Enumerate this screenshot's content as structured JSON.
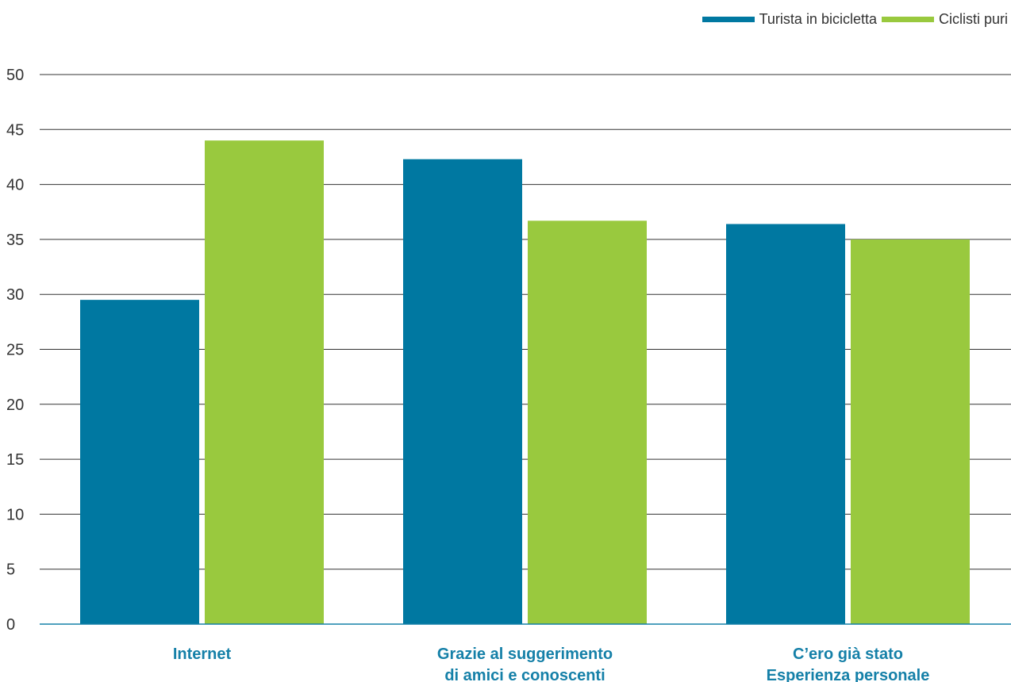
{
  "chart_data": {
    "type": "bar",
    "title": "",
    "xlabel": "",
    "ylabel": "",
    "ylim": [
      0,
      50
    ],
    "yticks": [
      0,
      5,
      10,
      15,
      20,
      25,
      30,
      35,
      40,
      45,
      50
    ],
    "grid": true,
    "legend_position": "top-right",
    "categories": [
      [
        "Internet"
      ],
      [
        "Grazie al suggerimento",
        "di amici e conoscenti"
      ],
      [
        "C’ero già stato",
        "Esperienza personale"
      ]
    ],
    "series": [
      {
        "name": "Turista in bicicletta",
        "color": "#0078A1",
        "values": [
          29.5,
          42.3,
          36.4
        ]
      },
      {
        "name": "Ciclisti puri",
        "color": "#99C93E",
        "values": [
          44.0,
          36.7,
          35.0
        ]
      }
    ],
    "category_label_color": "#1580A8",
    "gridline_color": "#333333",
    "axis_color": "#1580A8"
  }
}
